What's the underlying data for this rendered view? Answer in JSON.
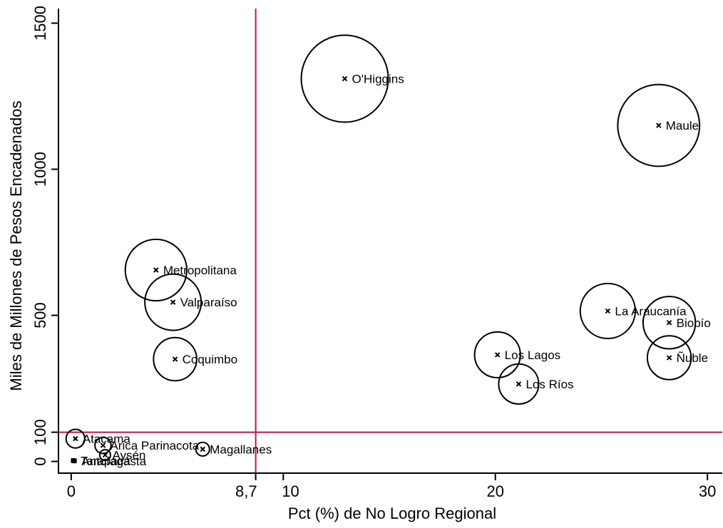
{
  "chart_data": {
    "type": "scatter",
    "subtype": "bubble",
    "title": "",
    "xlabel": "Pct (%) de No Logro Regional",
    "ylabel": "Miles de Millones de Pesos Encadenados",
    "xlim": [
      -0.6,
      30.7
    ],
    "ylim": [
      -40,
      1550
    ],
    "x_ticks": [
      {
        "value": 0,
        "label": "0"
      },
      {
        "value": 8.7,
        "label": "8,7"
      },
      {
        "value": 10,
        "label": "10"
      },
      {
        "value": 20,
        "label": "20"
      },
      {
        "value": 30,
        "label": "30"
      }
    ],
    "y_ticks": [
      {
        "value": 0,
        "label": "0"
      },
      {
        "value": 100,
        "label": "100"
      },
      {
        "value": 500,
        "label": "500"
      },
      {
        "value": 1000,
        "label": "1000"
      },
      {
        "value": 1500,
        "label": "1500"
      }
    ],
    "reference_lines": {
      "vertical_x": 8.7,
      "horizontal_y": 100,
      "color": "#c0144c"
    },
    "grid": false,
    "legend": "none",
    "points": [
      {
        "label": "O'Higgins",
        "x": 12.9,
        "y": 1310,
        "size": 1300
      },
      {
        "label": "Maule",
        "x": 27.7,
        "y": 1150,
        "size": 1150
      },
      {
        "label": "Metropolitana",
        "x": 4.0,
        "y": 655,
        "size": 650
      },
      {
        "label": "Valparaíso",
        "x": 4.8,
        "y": 545,
        "size": 545
      },
      {
        "label": "Coquimbo",
        "x": 4.9,
        "y": 350,
        "size": 320
      },
      {
        "label": "La Araucanía",
        "x": 25.3,
        "y": 515,
        "size": 520
      },
      {
        "label": "Biobío",
        "x": 28.2,
        "y": 475,
        "size": 470
      },
      {
        "label": "Ñuble",
        "x": 28.2,
        "y": 355,
        "size": 330
      },
      {
        "label": "Los Lagos",
        "x": 20.1,
        "y": 365,
        "size": 360
      },
      {
        "label": "Los Ríos",
        "x": 21.1,
        "y": 265,
        "size": 275
      },
      {
        "label": "Atacama",
        "x": 0.2,
        "y": 78,
        "size": 60
      },
      {
        "label": "Arica Parinacota",
        "x": 1.5,
        "y": 55,
        "size": 45
      },
      {
        "label": "Aysén",
        "x": 1.6,
        "y": 22,
        "size": 20
      },
      {
        "label": "Magallanes",
        "x": 6.2,
        "y": 42,
        "size": 32
      },
      {
        "label": "Tarapacá",
        "x": 0.1,
        "y": 3,
        "size": 1
      },
      {
        "label": "Antofagasta",
        "x": 0.15,
        "y": 2,
        "size": 1
      }
    ]
  }
}
